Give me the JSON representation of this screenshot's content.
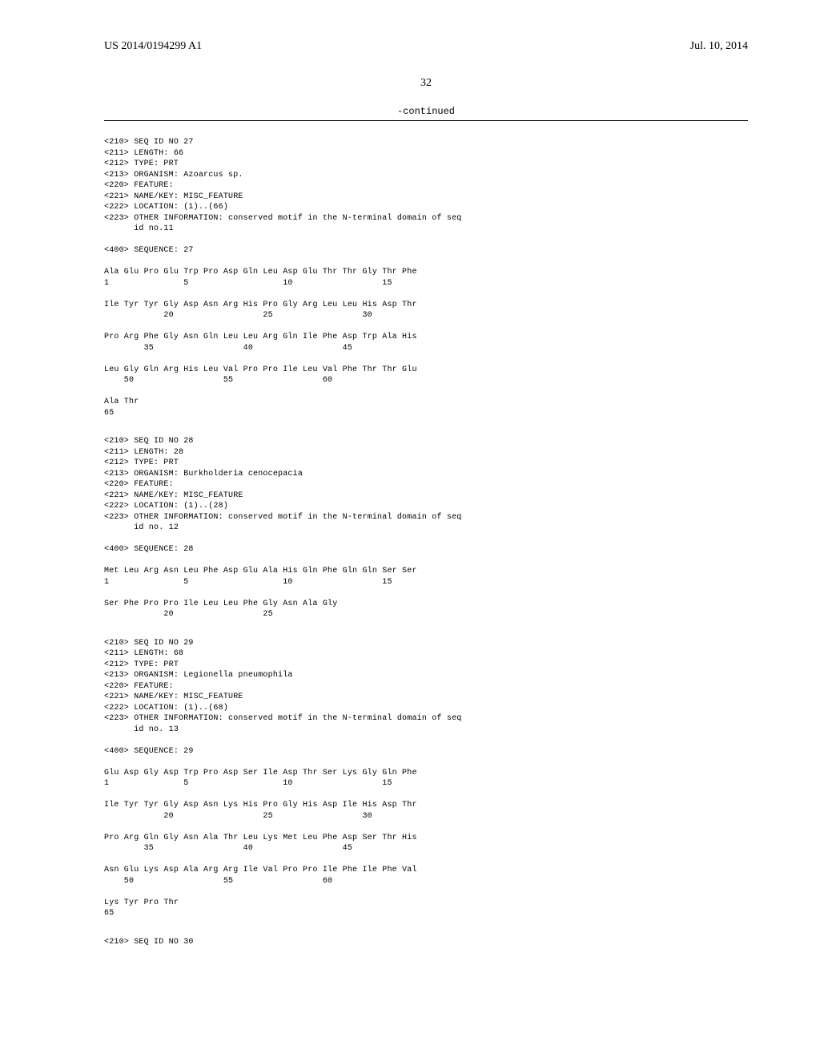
{
  "header": {
    "pub_number": "US 2014/0194299 A1",
    "pub_date": "Jul. 10, 2014"
  },
  "page_number": "32",
  "continued": "-continued",
  "seq27": {
    "l1": "<210> SEQ ID NO 27",
    "l2": "<211> LENGTH: 66",
    "l3": "<212> TYPE: PRT",
    "l4": "<213> ORGANISM: Azoarcus sp.",
    "l5": "<220> FEATURE:",
    "l6": "<221> NAME/KEY: MISC_FEATURE",
    "l7": "<222> LOCATION: (1)..(66)",
    "l8": "<223> OTHER INFORMATION: conserved motif in the N-terminal domain of seq",
    "l9": "      id no.11",
    "l10": "",
    "l11": "<400> SEQUENCE: 27",
    "l12": "",
    "l13": "Ala Glu Pro Glu Trp Pro Asp Gln Leu Asp Glu Thr Thr Gly Thr Phe",
    "l14": "1               5                   10                  15",
    "l15": "",
    "l16": "Ile Tyr Tyr Gly Asp Asn Arg His Pro Gly Arg Leu Leu His Asp Thr",
    "l17": "            20                  25                  30",
    "l18": "",
    "l19": "Pro Arg Phe Gly Asn Gln Leu Leu Arg Gln Ile Phe Asp Trp Ala His",
    "l20": "        35                  40                  45",
    "l21": "",
    "l22": "Leu Gly Gln Arg His Leu Val Pro Pro Ile Leu Val Phe Thr Thr Glu",
    "l23": "    50                  55                  60",
    "l24": "",
    "l25": "Ala Thr",
    "l26": "65"
  },
  "seq28": {
    "l1": "<210> SEQ ID NO 28",
    "l2": "<211> LENGTH: 28",
    "l3": "<212> TYPE: PRT",
    "l4": "<213> ORGANISM: Burkholderia cenocepacia",
    "l5": "<220> FEATURE:",
    "l6": "<221> NAME/KEY: MISC_FEATURE",
    "l7": "<222> LOCATION: (1)..(28)",
    "l8": "<223> OTHER INFORMATION: conserved motif in the N-terminal domain of seq",
    "l9": "      id no. 12",
    "l10": "",
    "l11": "<400> SEQUENCE: 28",
    "l12": "",
    "l13": "Met Leu Arg Asn Leu Phe Asp Glu Ala His Gln Phe Gln Gln Ser Ser",
    "l14": "1               5                   10                  15",
    "l15": "",
    "l16": "Ser Phe Pro Pro Ile Leu Leu Phe Gly Asn Ala Gly",
    "l17": "            20                  25"
  },
  "seq29": {
    "l1": "<210> SEQ ID NO 29",
    "l2": "<211> LENGTH: 68",
    "l3": "<212> TYPE: PRT",
    "l4": "<213> ORGANISM: Legionella pneumophila",
    "l5": "<220> FEATURE:",
    "l6": "<221> NAME/KEY: MISC_FEATURE",
    "l7": "<222> LOCATION: (1)..(68)",
    "l8": "<223> OTHER INFORMATION: conserved motif in the N-terminal domain of seq",
    "l9": "      id no. 13",
    "l10": "",
    "l11": "<400> SEQUENCE: 29",
    "l12": "",
    "l13": "Glu Asp Gly Asp Trp Pro Asp Ser Ile Asp Thr Ser Lys Gly Gln Phe",
    "l14": "1               5                   10                  15",
    "l15": "",
    "l16": "Ile Tyr Tyr Gly Asp Asn Lys His Pro Gly His Asp Ile His Asp Thr",
    "l17": "            20                  25                  30",
    "l18": "",
    "l19": "Pro Arg Gln Gly Asn Ala Thr Leu Lys Met Leu Phe Asp Ser Thr His",
    "l20": "        35                  40                  45",
    "l21": "",
    "l22": "Asn Glu Lys Asp Ala Arg Arg Ile Val Pro Pro Ile Phe Ile Phe Val",
    "l23": "    50                  55                  60",
    "l24": "",
    "l25": "Lys Tyr Pro Thr",
    "l26": "65"
  },
  "seq30": {
    "l1": "<210> SEQ ID NO 30"
  }
}
